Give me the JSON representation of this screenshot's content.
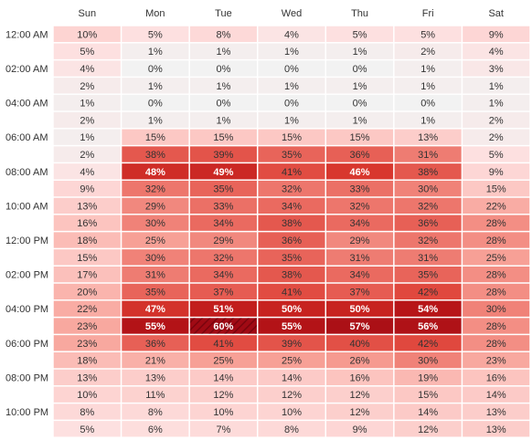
{
  "chart_data": {
    "type": "heatmap",
    "title": "",
    "xlabel": "",
    "ylabel": "",
    "unit": "%",
    "columns": [
      "Sun",
      "Mon",
      "Tue",
      "Wed",
      "Thu",
      "Fri",
      "Sat"
    ],
    "row_tick_labels": [
      "12:00 AM",
      "",
      "02:00 AM",
      "",
      "04:00 AM",
      "",
      "06:00 AM",
      "",
      "08:00 AM",
      "",
      "10:00 AM",
      "",
      "12:00 PM",
      "",
      "02:00 PM",
      "",
      "04:00 PM",
      "",
      "06:00 PM",
      "",
      "08:00 PM",
      "",
      "10:00 PM",
      ""
    ],
    "values": [
      [
        10,
        5,
        8,
        4,
        5,
        5,
        9
      ],
      [
        5,
        1,
        1,
        1,
        1,
        2,
        4
      ],
      [
        4,
        0,
        0,
        0,
        0,
        1,
        3
      ],
      [
        2,
        1,
        1,
        1,
        1,
        1,
        1
      ],
      [
        1,
        0,
        0,
        0,
        0,
        0,
        1
      ],
      [
        2,
        1,
        1,
        1,
        1,
        1,
        2
      ],
      [
        1,
        15,
        15,
        15,
        15,
        13,
        2
      ],
      [
        2,
        38,
        39,
        35,
        36,
        31,
        5
      ],
      [
        4,
        48,
        49,
        41,
        46,
        38,
        9
      ],
      [
        9,
        32,
        35,
        32,
        33,
        30,
        15
      ],
      [
        13,
        29,
        33,
        34,
        32,
        32,
        22
      ],
      [
        16,
        30,
        34,
        38,
        34,
        36,
        28
      ],
      [
        18,
        25,
        29,
        36,
        29,
        32,
        28
      ],
      [
        15,
        30,
        32,
        35,
        31,
        31,
        25
      ],
      [
        17,
        31,
        34,
        38,
        34,
        35,
        28
      ],
      [
        20,
        35,
        37,
        41,
        37,
        42,
        28
      ],
      [
        22,
        47,
        51,
        50,
        50,
        54,
        30
      ],
      [
        23,
        55,
        60,
        55,
        57,
        56,
        28
      ],
      [
        23,
        36,
        41,
        39,
        40,
        42,
        28
      ],
      [
        18,
        21,
        25,
        25,
        26,
        30,
        23
      ],
      [
        13,
        13,
        14,
        14,
        16,
        19,
        16
      ],
      [
        10,
        11,
        12,
        12,
        12,
        15,
        14
      ],
      [
        8,
        8,
        10,
        10,
        12,
        14,
        13
      ],
      [
        5,
        6,
        7,
        8,
        9,
        12,
        13
      ]
    ],
    "highlighted_cell": {
      "day": "Tue",
      "row": 17,
      "value": 60
    },
    "color_scale": {
      "low": "#f2f2f2",
      "high": "#a50f15"
    }
  }
}
